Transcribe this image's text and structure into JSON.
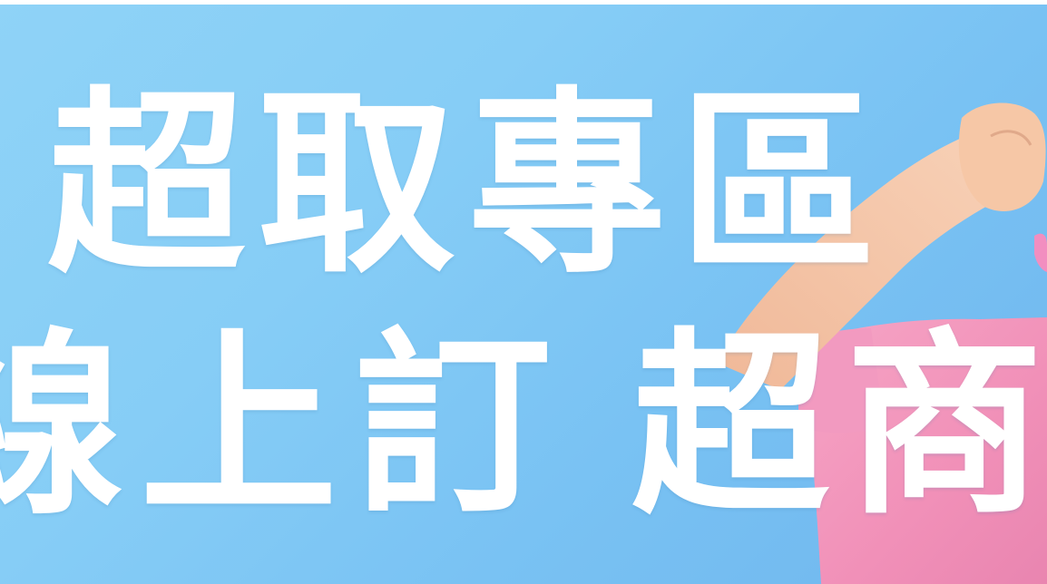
{
  "banner": {
    "headline_line1": "超取專區",
    "headline_line2_left": "線上訂",
    "headline_line2_right": "超商取"
  },
  "colors": {
    "background": "#86cdf6",
    "text": "#ffffff",
    "shirt": "#f39bbf",
    "skin": "#f6c8a8"
  }
}
